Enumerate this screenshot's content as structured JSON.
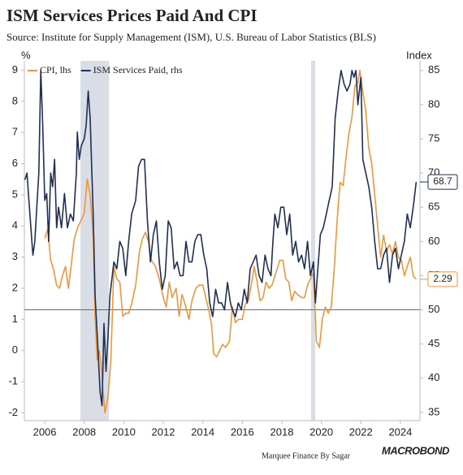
{
  "chart_data": {
    "type": "line",
    "title": "ISM Services Prices Paid And CPI",
    "subtitle": "Source: Institute for Supply Management (ISM), U.S. Bureau of Labor Statistics (BLS)",
    "ylabel": "%",
    "y2label": "Index",
    "footer": "Marquee Finance By Sagar",
    "logo": "MACROBOND",
    "legend": "upper left",
    "xlim": [
      2005.47,
      2025.49
    ],
    "xticks": [
      {
        "value": 2006.5,
        "label": "2006"
      },
      {
        "value": 2008.5,
        "label": "2008"
      },
      {
        "value": 2010.5,
        "label": "2010"
      },
      {
        "value": 2012.5,
        "label": "2012"
      },
      {
        "value": 2014.5,
        "label": "2014"
      },
      {
        "value": 2016.5,
        "label": "2016"
      },
      {
        "value": 2018.5,
        "label": "2018"
      },
      {
        "value": 2020.5,
        "label": "2020"
      },
      {
        "value": 2022.5,
        "label": "2022"
      },
      {
        "value": 2024.5,
        "label": "2024"
      }
    ],
    "ylim": [
      -2.25,
      9.3
    ],
    "yticks": [
      -2,
      -1,
      0,
      1,
      2,
      3,
      4,
      5,
      6,
      7,
      8,
      9
    ],
    "y2lim": [
      33.8,
      86.4
    ],
    "y2ticks": [
      35,
      40,
      45,
      50,
      55,
      60,
      65,
      70,
      75,
      80,
      85
    ],
    "hline_y2": 50,
    "hline_color": "#555555",
    "shaded_ranges": [
      [
        2008.31,
        2009.75
      ],
      [
        2019.98,
        2020.19
      ]
    ],
    "shade_color": "#d9dde5",
    "series": [
      {
        "name": "CPI, lhs",
        "color": "#f0963a",
        "axis": "y",
        "end_label": "2.29",
        "x": [
          2006.5,
          2006.65,
          2006.8,
          2006.95,
          2007.1,
          2007.25,
          2007.4,
          2007.55,
          2007.7,
          2007.85,
          2008,
          2008.2,
          2008.35,
          2008.5,
          2008.65,
          2008.8,
          2008.95,
          2009.05,
          2009.15,
          2009.25,
          2009.35,
          2009.45,
          2009.55,
          2009.7,
          2009.85,
          2010,
          2010.15,
          2010.3,
          2010.45,
          2010.6,
          2010.75,
          2010.9,
          2011.1,
          2011.3,
          2011.45,
          2011.6,
          2011.75,
          2011.9,
          2012.1,
          2012.3,
          2012.5,
          2012.65,
          2012.8,
          2012.95,
          2013.15,
          2013.3,
          2013.45,
          2013.6,
          2013.8,
          2013.95,
          2014.15,
          2014.3,
          2014.5,
          2014.65,
          2014.8,
          2014.95,
          2015.05,
          2015.2,
          2015.35,
          2015.5,
          2015.65,
          2015.85,
          2016,
          2016.15,
          2016.3,
          2016.5,
          2016.65,
          2016.8,
          2016.95,
          2017.1,
          2017.25,
          2017.4,
          2017.55,
          2017.7,
          2017.85,
          2018,
          2018.2,
          2018.4,
          2018.55,
          2018.7,
          2018.85,
          2019,
          2019.15,
          2019.3,
          2019.5,
          2019.65,
          2019.8,
          2019.95,
          2020.1,
          2020.25,
          2020.4,
          2020.55,
          2020.7,
          2020.85,
          2021,
          2021.15,
          2021.3,
          2021.45,
          2021.6,
          2021.75,
          2021.9,
          2022.05,
          2022.2,
          2022.35,
          2022.45,
          2022.6,
          2022.75,
          2022.9,
          2023.05,
          2023.2,
          2023.35,
          2023.5,
          2023.65,
          2023.8,
          2023.95,
          2024.1,
          2024.25,
          2024.4,
          2024.55,
          2024.7,
          2024.85,
          2025,
          2025.15,
          2025.3
        ],
        "values": [
          3.6,
          3.9,
          2.9,
          2.6,
          2.1,
          2.0,
          2.4,
          2.7,
          2.0,
          2.8,
          3.6,
          4.0,
          4.2,
          4.4,
          5.5,
          5.0,
          3.7,
          1.1,
          -0.3,
          0.0,
          -0.4,
          -1.3,
          -2.0,
          -1.5,
          -0.3,
          2.7,
          2.3,
          2.2,
          1.1,
          1.2,
          1.2,
          1.5,
          2.1,
          3.2,
          3.6,
          3.8,
          3.5,
          2.9,
          2.7,
          2.3,
          1.7,
          1.4,
          2.2,
          1.7,
          2.0,
          1.1,
          1.8,
          1.5,
          1.0,
          1.6,
          2.0,
          2.1,
          2.1,
          1.7,
          1.3,
          0.8,
          -0.1,
          -0.2,
          0.0,
          0.2,
          0.1,
          0.3,
          1.4,
          0.9,
          1.0,
          1.0,
          1.5,
          1.6,
          2.1,
          2.7,
          2.2,
          1.6,
          1.7,
          2.2,
          2.0,
          2.1,
          2.5,
          2.9,
          2.9,
          2.3,
          2.2,
          1.6,
          1.9,
          1.8,
          1.7,
          1.7,
          2.1,
          2.3,
          2.5,
          0.3,
          0.1,
          1.0,
          1.4,
          1.2,
          1.4,
          2.6,
          4.2,
          5.4,
          5.3,
          6.2,
          7.0,
          7.5,
          8.5,
          8.6,
          9.0,
          8.3,
          7.7,
          6.5,
          6.0,
          5.0,
          4.0,
          3.0,
          3.7,
          3.2,
          3.4,
          3.1,
          3.5,
          3.0,
          2.9,
          2.4,
          2.7,
          3.0,
          2.4,
          2.29
        ]
      },
      {
        "name": "ISM Services Paid, rhs",
        "color": "#1f2f55",
        "axis": "y2",
        "end_label": "68.7",
        "x": [
          2005.5,
          2005.6,
          2005.75,
          2005.9,
          2006.0,
          2006.1,
          2006.2,
          2006.3,
          2006.4,
          2006.5,
          2006.6,
          2006.7,
          2006.8,
          2006.9,
          2007.0,
          2007.1,
          2007.2,
          2007.35,
          2007.5,
          2007.65,
          2007.8,
          2007.95,
          2008.1,
          2008.15,
          2008.25,
          2008.35,
          2008.5,
          2008.6,
          2008.7,
          2008.8,
          2008.95,
          2009.05,
          2009.2,
          2009.3,
          2009.4,
          2009.5,
          2009.6,
          2009.7,
          2009.8,
          2010.0,
          2010.15,
          2010.3,
          2010.45,
          2010.6,
          2010.75,
          2010.9,
          2011.1,
          2011.25,
          2011.4,
          2011.55,
          2011.7,
          2011.85,
          2012.0,
          2012.15,
          2012.3,
          2012.45,
          2012.6,
          2012.75,
          2012.9,
          2013.05,
          2013.2,
          2013.35,
          2013.5,
          2013.65,
          2013.8,
          2013.95,
          2014.1,
          2014.25,
          2014.4,
          2014.55,
          2014.7,
          2014.85,
          2015.0,
          2015.15,
          2015.3,
          2015.45,
          2015.6,
          2015.75,
          2015.9,
          2016.0,
          2016.15,
          2016.3,
          2016.45,
          2016.6,
          2016.75,
          2016.9,
          2017.05,
          2017.2,
          2017.35,
          2017.5,
          2017.65,
          2017.8,
          2017.95,
          2018.05,
          2018.15,
          2018.3,
          2018.45,
          2018.6,
          2018.75,
          2018.9,
          2019.05,
          2019.2,
          2019.35,
          2019.5,
          2019.65,
          2019.8,
          2019.95,
          2020.1,
          2020.2,
          2020.3,
          2020.45,
          2020.6,
          2020.75,
          2020.9,
          2021.05,
          2021.2,
          2021.35,
          2021.5,
          2021.65,
          2021.8,
          2021.95,
          2022.05,
          2022.15,
          2022.25,
          2022.35,
          2022.5,
          2022.6,
          2022.75,
          2022.9,
          2023.05,
          2023.2,
          2023.35,
          2023.5,
          2023.65,
          2023.8,
          2023.95,
          2024.1,
          2024.25,
          2024.4,
          2024.55,
          2024.7,
          2024.85,
          2025.0,
          2025.15,
          2025.3
        ],
        "values": [
          69,
          70,
          64,
          58,
          60,
          65,
          70,
          85,
          77,
          66,
          67,
          60,
          70,
          68,
          72,
          62,
          65,
          62,
          67,
          62,
          64,
          63,
          70,
          76,
          72,
          74,
          75,
          77,
          82,
          78,
          64,
          52,
          44,
          38,
          36,
          48,
          41,
          46,
          52,
          57,
          56,
          60,
          59,
          55,
          60,
          64,
          66,
          71,
          72,
          72,
          63,
          57,
          61,
          63,
          57,
          53,
          55,
          63,
          62,
          56,
          57,
          55,
          55,
          60,
          57,
          57,
          60,
          61,
          61,
          58,
          56,
          51,
          49,
          53,
          51,
          51,
          50,
          54,
          51,
          50,
          49,
          51,
          50,
          53,
          51,
          56,
          57,
          58,
          55,
          54,
          58,
          56,
          55,
          60,
          64,
          62,
          65,
          65,
          61,
          64,
          58,
          60,
          57,
          58,
          56,
          60,
          55,
          57,
          51,
          55,
          61,
          62,
          64,
          66,
          68,
          78,
          82,
          85,
          83,
          82,
          83,
          85,
          84,
          85,
          80,
          84,
          72,
          70,
          68,
          65,
          60,
          56,
          56,
          58,
          59,
          54,
          58,
          59,
          56,
          58,
          60,
          64,
          62,
          65,
          68.7
        ]
      }
    ]
  }
}
